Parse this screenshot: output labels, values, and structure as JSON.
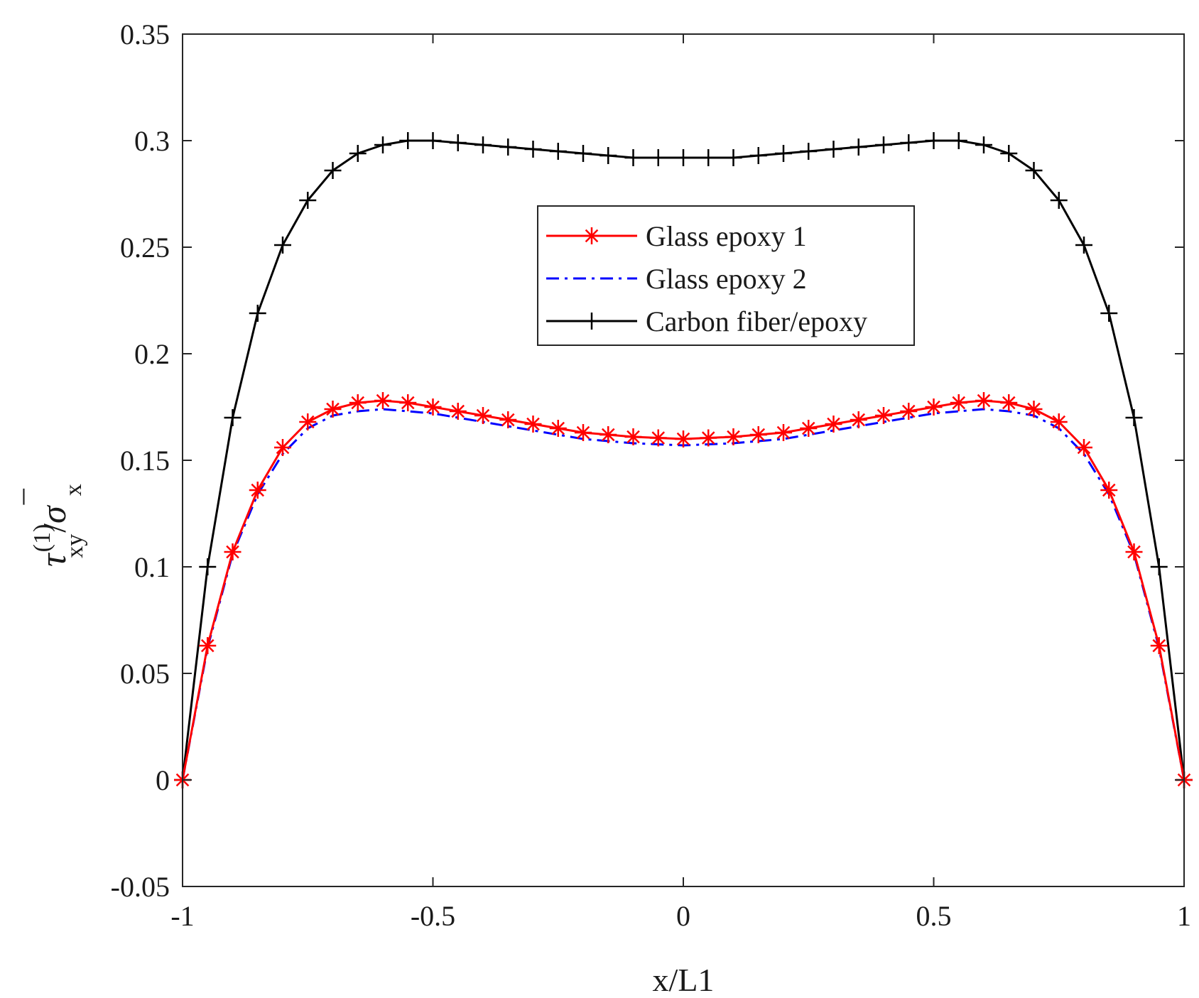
{
  "chart_data": {
    "type": "line",
    "title": "",
    "xlabel": "x/L1",
    "ylabel_parts": {
      "symbol": "τ",
      "sup": "(1)",
      "sub": "xy",
      "slash": "/",
      "sigma": "σ",
      "bar": "¯",
      "sigma_sub": "x"
    },
    "xlim": [
      -1,
      1
    ],
    "ylim": [
      -0.05,
      0.35
    ],
    "xticks": [
      -1,
      -0.5,
      0,
      0.5,
      1
    ],
    "xtick_labels": [
      "-1",
      "-0.5",
      "0",
      "0.5",
      "1"
    ],
    "yticks": [
      -0.05,
      0,
      0.05,
      0.1,
      0.15,
      0.2,
      0.25,
      0.3,
      0.35
    ],
    "ytick_labels": [
      "-0.05",
      "0",
      "0.05",
      "0.1",
      "0.15",
      "0.2",
      "0.25",
      "0.3",
      "0.35"
    ],
    "grid": false,
    "legend_position": "top-center",
    "x": [
      -1,
      -0.95,
      -0.9,
      -0.85,
      -0.8,
      -0.75,
      -0.7,
      -0.65,
      -0.6,
      -0.55,
      -0.5,
      -0.45,
      -0.4,
      -0.35,
      -0.3,
      -0.25,
      -0.2,
      -0.15,
      -0.1,
      -0.05,
      0,
      0.05,
      0.1,
      0.15,
      0.2,
      0.25,
      0.3,
      0.35,
      0.4,
      0.45,
      0.5,
      0.55,
      0.6,
      0.65,
      0.7,
      0.75,
      0.8,
      0.85,
      0.9,
      0.95,
      1
    ],
    "series": [
      {
        "name": "Glass epoxy 1",
        "color": "#ff0000",
        "dash": "solid",
        "marker": "asterisk",
        "values": [
          0,
          0.063,
          0.107,
          0.136,
          0.156,
          0.168,
          0.174,
          0.177,
          0.178,
          0.177,
          0.175,
          0.173,
          0.171,
          0.169,
          0.167,
          0.165,
          0.163,
          0.162,
          0.161,
          0.1605,
          0.16,
          0.1605,
          0.161,
          0.162,
          0.163,
          0.165,
          0.167,
          0.169,
          0.171,
          0.173,
          0.175,
          0.177,
          0.178,
          0.177,
          0.174,
          0.168,
          0.156,
          0.136,
          0.107,
          0.063,
          0
        ]
      },
      {
        "name": "Glass epoxy 2",
        "color": "#0000ff",
        "dash": "dashdot",
        "marker": "none",
        "values": [
          0,
          0.062,
          0.106,
          0.134,
          0.153,
          0.165,
          0.171,
          0.173,
          0.174,
          0.173,
          0.172,
          0.17,
          0.168,
          0.166,
          0.164,
          0.162,
          0.16,
          0.159,
          0.158,
          0.1575,
          0.157,
          0.1575,
          0.158,
          0.159,
          0.16,
          0.162,
          0.164,
          0.166,
          0.168,
          0.17,
          0.172,
          0.173,
          0.174,
          0.173,
          0.171,
          0.165,
          0.153,
          0.134,
          0.106,
          0.062,
          0
        ]
      },
      {
        "name": "Carbon fiber/epoxy",
        "color": "#000000",
        "dash": "solid",
        "marker": "plus",
        "values": [
          0,
          0.1,
          0.17,
          0.219,
          0.251,
          0.272,
          0.286,
          0.294,
          0.298,
          0.3,
          0.3,
          0.299,
          0.298,
          0.297,
          0.296,
          0.295,
          0.294,
          0.293,
          0.292,
          0.292,
          0.292,
          0.292,
          0.292,
          0.293,
          0.294,
          0.295,
          0.296,
          0.297,
          0.298,
          0.299,
          0.3,
          0.3,
          0.298,
          0.294,
          0.286,
          0.272,
          0.251,
          0.219,
          0.17,
          0.1,
          0
        ]
      }
    ]
  }
}
